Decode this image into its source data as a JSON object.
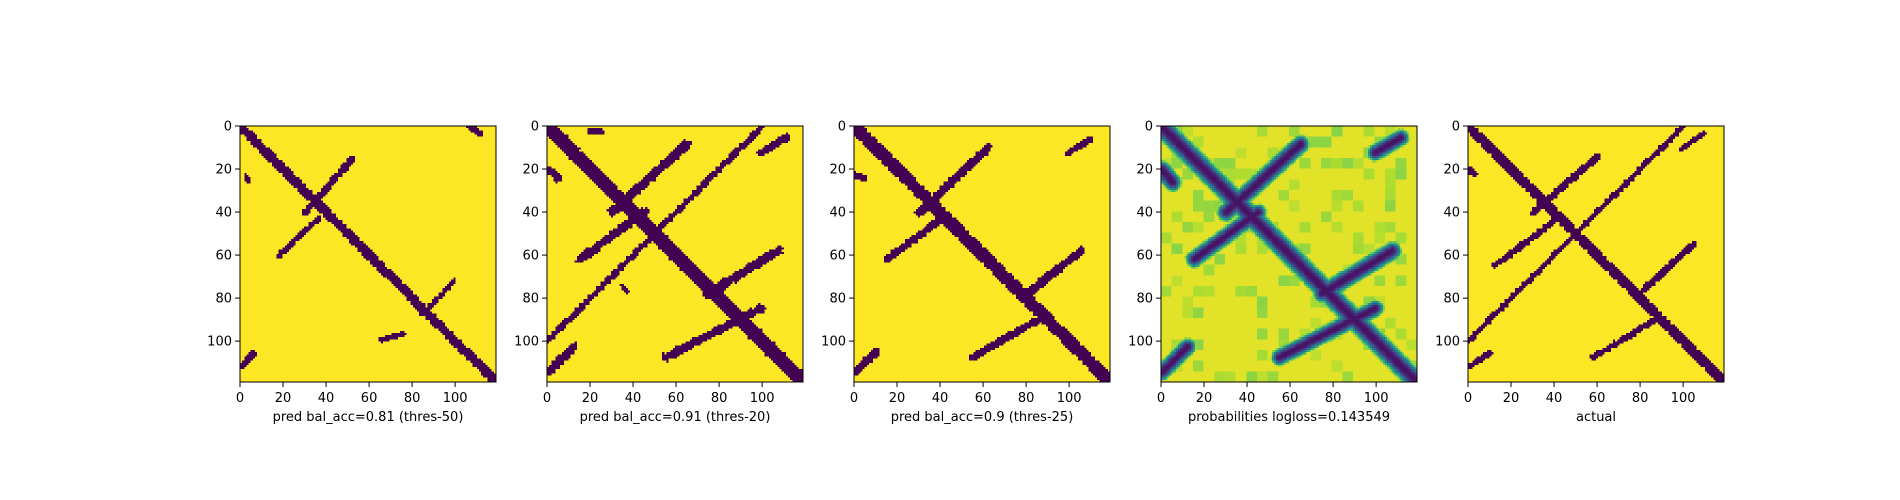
{
  "colors": {
    "low": "#440154",
    "mid": "#21918c",
    "high": "#fde725",
    "frame": "#000000"
  },
  "chart_data": [
    {
      "type": "heatmap",
      "name": "pred-thres-50",
      "xlabel": "pred bal_acc=0.81 (thres-50)",
      "ylabel": "",
      "xlim": [
        0,
        119
      ],
      "ylim": [
        119,
        0
      ],
      "xticks": [
        0,
        20,
        40,
        60,
        80,
        100
      ],
      "yticks": [
        0,
        20,
        40,
        60,
        80,
        100
      ],
      "colormap": "viridis",
      "binary": true,
      "background_value": 1,
      "contacts": [
        {
          "kind": "diagonal",
          "width": 2.2
        },
        {
          "kind": "band",
          "from": [
            30,
            40
          ],
          "to": [
            52,
            15
          ],
          "width": 1.6
        },
        {
          "kind": "band",
          "from": [
            18,
            60
          ],
          "to": [
            36,
            43
          ],
          "width": 1.4
        },
        {
          "kind": "band",
          "from": [
            85,
            88
          ],
          "to": [
            100,
            72
          ],
          "width": 1.2
        },
        {
          "kind": "band",
          "from": [
            65,
            100
          ],
          "to": [
            76,
            97
          ],
          "width": 1.2
        },
        {
          "kind": "band",
          "from": [
            0,
            112
          ],
          "to": [
            6,
            106
          ],
          "width": 1.4
        },
        {
          "kind": "band",
          "from": [
            107,
            0
          ],
          "to": [
            112,
            3
          ],
          "width": 1.4
        },
        {
          "kind": "band",
          "from": [
            2,
            23
          ],
          "to": [
            3,
            25
          ],
          "width": 1.2
        }
      ]
    },
    {
      "type": "heatmap",
      "name": "pred-thres-20",
      "xlabel": "pred bal_acc=0.91 (thres-20)",
      "ylabel": "",
      "xlim": [
        0,
        119
      ],
      "ylim": [
        119,
        0
      ],
      "xticks": [
        0,
        20,
        40,
        60,
        80,
        100
      ],
      "yticks": [
        0,
        20,
        40,
        60,
        80,
        100
      ],
      "colormap": "viridis",
      "binary": true,
      "background_value": 1,
      "contacts": [
        {
          "kind": "diagonal",
          "width": 3.2
        },
        {
          "kind": "band",
          "from": [
            0,
            100
          ],
          "to": [
            100,
            0
          ],
          "width": 1.4
        },
        {
          "kind": "band",
          "from": [
            30,
            40
          ],
          "to": [
            65,
            8
          ],
          "width": 2.2
        },
        {
          "kind": "band",
          "from": [
            15,
            62
          ],
          "to": [
            45,
            40
          ],
          "width": 2.0
        },
        {
          "kind": "band",
          "from": [
            55,
            108
          ],
          "to": [
            100,
            85
          ],
          "width": 2.0
        },
        {
          "kind": "band",
          "from": [
            75,
            78
          ],
          "to": [
            108,
            58
          ],
          "width": 2.2
        },
        {
          "kind": "band",
          "from": [
            0,
            115
          ],
          "to": [
            12,
            103
          ],
          "width": 2.0
        },
        {
          "kind": "band",
          "from": [
            100,
            12
          ],
          "to": [
            112,
            5
          ],
          "width": 1.8
        },
        {
          "kind": "band",
          "from": [
            0,
            20
          ],
          "to": [
            5,
            24
          ],
          "width": 2.0
        },
        {
          "kind": "band",
          "from": [
            20,
            2
          ],
          "to": [
            25,
            2
          ],
          "width": 1.4
        },
        {
          "kind": "band",
          "from": [
            35,
            75
          ],
          "to": [
            37,
            77
          ],
          "width": 1.2
        }
      ]
    },
    {
      "type": "heatmap",
      "name": "pred-thres-25",
      "xlabel": "pred bal_acc=0.9 (thres-25)",
      "ylabel": "",
      "xlim": [
        0,
        119
      ],
      "ylim": [
        119,
        0
      ],
      "xticks": [
        0,
        20,
        40,
        60,
        80,
        100
      ],
      "yticks": [
        0,
        20,
        40,
        60,
        80,
        100
      ],
      "colormap": "viridis",
      "binary": true,
      "background_value": 1,
      "contacts": [
        {
          "kind": "diagonal",
          "width": 3.0
        },
        {
          "kind": "band",
          "from": [
            30,
            40
          ],
          "to": [
            62,
            10
          ],
          "width": 2.0
        },
        {
          "kind": "band",
          "from": [
            15,
            62
          ],
          "to": [
            42,
            42
          ],
          "width": 1.8
        },
        {
          "kind": "band",
          "from": [
            55,
            108
          ],
          "to": [
            90,
            88
          ],
          "width": 1.8
        },
        {
          "kind": "band",
          "from": [
            78,
            80
          ],
          "to": [
            106,
            58
          ],
          "width": 2.0
        },
        {
          "kind": "band",
          "from": [
            0,
            115
          ],
          "to": [
            10,
            105
          ],
          "width": 1.8
        },
        {
          "kind": "band",
          "from": [
            100,
            12
          ],
          "to": [
            110,
            6
          ],
          "width": 1.6
        },
        {
          "kind": "band",
          "from": [
            0,
            22
          ],
          "to": [
            4,
            24
          ],
          "width": 1.6
        }
      ]
    },
    {
      "type": "heatmap",
      "name": "probabilities",
      "xlabel": "probabilities logloss=0.143549",
      "ylabel": "",
      "xlim": [
        0,
        119
      ],
      "ylim": [
        119,
        0
      ],
      "xticks": [
        0,
        20,
        40,
        60,
        80,
        100
      ],
      "yticks": [
        0,
        20,
        40,
        60,
        80,
        100
      ],
      "colormap": "viridis",
      "binary": false,
      "background_value": 0.97,
      "contacts": [
        {
          "kind": "diagonal",
          "width": 3.0
        },
        {
          "kind": "band",
          "from": [
            30,
            40
          ],
          "to": [
            65,
            8
          ],
          "width": 2.6
        },
        {
          "kind": "band",
          "from": [
            15,
            62
          ],
          "to": [
            45,
            40
          ],
          "width": 2.4
        },
        {
          "kind": "band",
          "from": [
            55,
            108
          ],
          "to": [
            100,
            85
          ],
          "width": 2.4
        },
        {
          "kind": "band",
          "from": [
            75,
            78
          ],
          "to": [
            108,
            58
          ],
          "width": 2.6
        },
        {
          "kind": "band",
          "from": [
            0,
            115
          ],
          "to": [
            12,
            103
          ],
          "width": 2.4
        },
        {
          "kind": "band",
          "from": [
            100,
            12
          ],
          "to": [
            112,
            5
          ],
          "width": 2.4
        },
        {
          "kind": "band",
          "from": [
            0,
            20
          ],
          "to": [
            5,
            26
          ],
          "width": 2.6
        }
      ]
    },
    {
      "type": "heatmap",
      "name": "actual",
      "xlabel": "actual",
      "ylabel": "",
      "xlim": [
        0,
        119
      ],
      "ylim": [
        119,
        0
      ],
      "xticks": [
        0,
        20,
        40,
        60,
        80,
        100
      ],
      "yticks": [
        0,
        20,
        40,
        60,
        80,
        100
      ],
      "colormap": "viridis",
      "binary": true,
      "background_value": 1,
      "contacts": [
        {
          "kind": "diagonal",
          "width": 2.4
        },
        {
          "kind": "band",
          "from": [
            0,
            100
          ],
          "to": [
            100,
            0
          ],
          "width": 1.2
        },
        {
          "kind": "band",
          "from": [
            30,
            40
          ],
          "to": [
            60,
            14
          ],
          "width": 1.6
        },
        {
          "kind": "band",
          "from": [
            12,
            65
          ],
          "to": [
            40,
            44
          ],
          "width": 1.4
        },
        {
          "kind": "band",
          "from": [
            58,
            108
          ],
          "to": [
            88,
            90
          ],
          "width": 1.4
        },
        {
          "kind": "band",
          "from": [
            80,
            78
          ],
          "to": [
            105,
            55
          ],
          "width": 1.6
        },
        {
          "kind": "band",
          "from": [
            0,
            112
          ],
          "to": [
            10,
            106
          ],
          "width": 1.4
        },
        {
          "kind": "band",
          "from": [
            100,
            10
          ],
          "to": [
            110,
            3
          ],
          "width": 1.4
        },
        {
          "kind": "band",
          "from": [
            0,
            20
          ],
          "to": [
            3,
            22
          ],
          "width": 1.4
        }
      ]
    }
  ]
}
